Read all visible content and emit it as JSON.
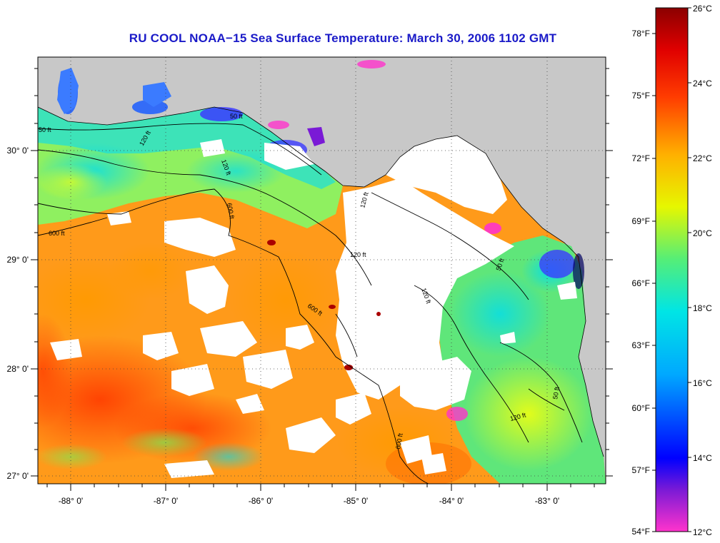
{
  "title": "RU COOL  NOAA−15  Sea Surface Temperature:  March 30, 2006 1102 GMT",
  "map": {
    "lon_ticks": [
      "-88° 0'",
      "-87° 0'",
      "-86° 0'",
      "-85° 0'",
      "-84° 0'",
      "-83° 0'"
    ],
    "lat_ticks": [
      "30° 0'",
      "29° 0'",
      "28° 0'",
      "27° 0'"
    ],
    "contour_labels": [
      "50 ft",
      "120 ft",
      "600 ft",
      "50 ft",
      "120 ft",
      "600 ft",
      "120 ft",
      "600 ft",
      "120 ft",
      "50 ft",
      "120 ft",
      "600 ft",
      "50 ft",
      "120 ft"
    ],
    "land_color": "#c8c8c8",
    "cloud_color": "#ffffff"
  },
  "colorbar": {
    "celsius_labels": [
      "26°C",
      "24°C",
      "22°C",
      "20°C",
      "18°C",
      "16°C",
      "14°C",
      "12°C"
    ],
    "fahrenheit_labels": [
      "78°F",
      "75°F",
      "72°F",
      "69°F",
      "66°F",
      "63°F",
      "60°F",
      "57°F",
      "54°F"
    ],
    "celsius_values": [
      26,
      24,
      22,
      20,
      18,
      16,
      14,
      12
    ],
    "fahrenheit_values": [
      78,
      75,
      72,
      69,
      66,
      63,
      60,
      57,
      54
    ],
    "colors": [
      "#ff33cc",
      "#7a1ad6",
      "#0000ff",
      "#00a8ff",
      "#00e5e5",
      "#55ee77",
      "#e6f700",
      "#ffb000",
      "#ff3c00",
      "#e00000",
      "#8b0000"
    ]
  }
}
